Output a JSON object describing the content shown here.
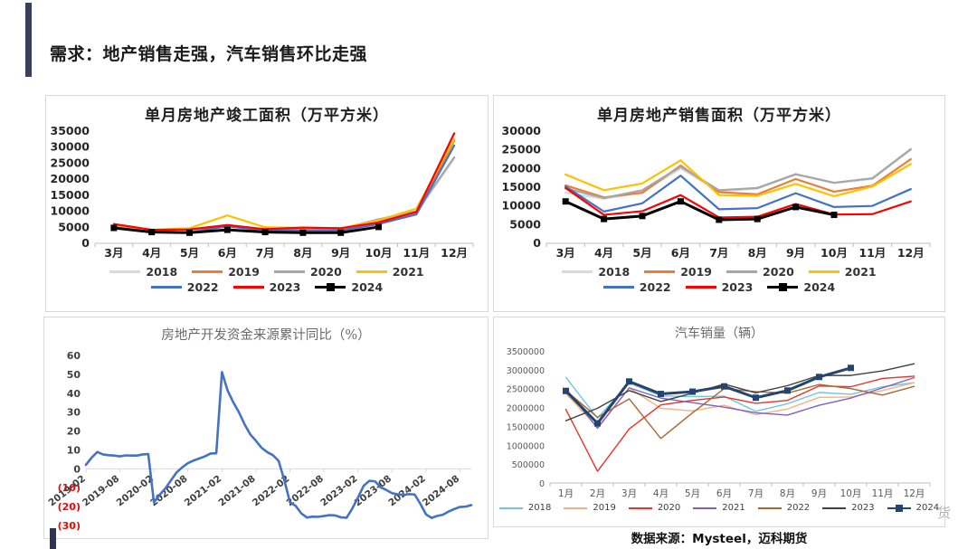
{
  "page": {
    "title": "需求：地产销售走强，汽车销售环比走强",
    "footer": "数据来源：Mysteel，迈科期货",
    "watermark": "货"
  },
  "chart_data": [
    {
      "type": "line",
      "title": "单月房地产竣工面积（万平方米）",
      "categories": [
        "3月",
        "4月",
        "5月",
        "6月",
        "7月",
        "8月",
        "9月",
        "10月",
        "11月",
        "12月"
      ],
      "ylim": [
        0,
        35000
      ],
      "ytick_step": 5000,
      "grid": false,
      "legend_position": "bottom",
      "series": [
        {
          "name": "2018",
          "color": "#D9D9D9",
          "values": [
            5000,
            4000,
            4100,
            5200,
            4100,
            4200,
            4300,
            6500,
            9300,
            26500
          ]
        },
        {
          "name": "2019",
          "color": "#ED7D31",
          "values": [
            5700,
            4100,
            4300,
            5500,
            4400,
            4700,
            4600,
            6800,
            9700,
            32000
          ]
        },
        {
          "name": "2020",
          "color": "#A6A6A6",
          "values": [
            5400,
            4000,
            4400,
            5700,
            4400,
            4500,
            4500,
            7500,
            10000,
            26800
          ]
        },
        {
          "name": "2021",
          "color": "#FFC000",
          "values": [
            5200,
            4200,
            4700,
            8700,
            5000,
            4800,
            4700,
            7200,
            10800,
            32500
          ]
        },
        {
          "name": "2022",
          "color": "#4472C4",
          "values": [
            5000,
            3500,
            3400,
            5300,
            4000,
            4000,
            4000,
            6000,
            9000,
            30500
          ]
        },
        {
          "name": "2023",
          "color": "#FF0000",
          "values": [
            6000,
            4200,
            4300,
            5700,
            4400,
            4900,
            4700,
            6500,
            9800,
            34300
          ]
        },
        {
          "name": "2024",
          "color": "#000000",
          "marker": true,
          "values": [
            4800,
            3500,
            3300,
            4200,
            3500,
            3300,
            3300,
            5100,
            null,
            null
          ]
        }
      ]
    },
    {
      "type": "line",
      "title": "单月房地产销售面积（万平方米）",
      "categories": [
        "3月",
        "4月",
        "5月",
        "6月",
        "7月",
        "8月",
        "9月",
        "10月",
        "11月",
        "12月"
      ],
      "ylim": [
        0,
        30000
      ],
      "ytick_step": 5000,
      "grid": false,
      "legend_position": "bottom",
      "series": [
        {
          "name": "2018",
          "color": "#D9D9D9",
          "values": [
            13500,
            11900,
            13700,
            20000,
            14000,
            14600,
            18400,
            16100,
            17200,
            25000
          ]
        },
        {
          "name": "2019",
          "color": "#ED7D31",
          "values": [
            15500,
            12300,
            13500,
            20800,
            13700,
            13100,
            17200,
            13800,
            15400,
            22500
          ]
        },
        {
          "name": "2020",
          "color": "#A6A6A6",
          "values": [
            14700,
            12100,
            14200,
            20500,
            14200,
            14800,
            18500,
            16200,
            17400,
            25200
          ]
        },
        {
          "name": "2021",
          "color": "#FFC000",
          "values": [
            18400,
            14200,
            16000,
            22200,
            12900,
            12700,
            15900,
            12600,
            15200,
            21200
          ]
        },
        {
          "name": "2022",
          "color": "#4472C4",
          "values": [
            15200,
            8500,
            10700,
            18100,
            9100,
            9400,
            13400,
            9700,
            10000,
            14500
          ]
        },
        {
          "name": "2023",
          "color": "#FF0000",
          "values": [
            14800,
            7600,
            8600,
            12900,
            6900,
            7100,
            10500,
            7700,
            7800,
            11200
          ]
        },
        {
          "name": "2024",
          "color": "#000000",
          "marker": true,
          "values": [
            11200,
            6500,
            7300,
            11200,
            6300,
            6500,
            9700,
            7600,
            null,
            null
          ]
        }
      ]
    },
    {
      "type": "line",
      "title": "房地产开发资金来源累计同比（%）",
      "ylim": [
        -30,
        60
      ],
      "ytick_step": 10,
      "grid": false,
      "line_color": "#4472C4",
      "negative_tick_color": "#FF0000",
      "tick_labels": [
        "2019-02",
        "2019-08",
        "2020-02",
        "2020-08",
        "2021-02",
        "2021-08",
        "2022-02",
        "2022-08",
        "2023-02",
        "2023-08",
        "2024-02",
        "2024-08"
      ],
      "tick_every": 6,
      "values": [
        2.1,
        5.9,
        8.9,
        7.6,
        7.2,
        7.0,
        6.6,
        7.1,
        7.0,
        7.0,
        7.6,
        7.8,
        -17.8,
        -13.8,
        -10.4,
        -6.1,
        -1.9,
        0.8,
        3.0,
        4.4,
        5.5,
        6.6,
        8.1,
        8.2,
        51.2,
        41.4,
        35.2,
        29.9,
        23.5,
        18.2,
        14.8,
        11.1,
        8.8,
        7.2,
        4.2,
        -6.0,
        -17.7,
        -19.6,
        -23.6,
        -25.8,
        -25.3,
        -25.4,
        -25.0,
        -24.5,
        -24.7,
        -25.7,
        -25.9,
        -21.0,
        -15.2,
        -9.0,
        -6.4,
        -6.6,
        -9.8,
        -11.2,
        -12.9,
        -13.5,
        -13.8,
        -13.4,
        -13.6,
        -18.5,
        -24.1,
        -26.0,
        -24.9,
        -24.3,
        -22.6,
        -21.3,
        -20.2,
        -20.0,
        -19.2
      ]
    },
    {
      "type": "line",
      "title": "汽车销量（辆）",
      "categories": [
        "1月",
        "2月",
        "3月",
        "4月",
        "5月",
        "6月",
        "7月",
        "8月",
        "9月",
        "10月",
        "11月",
        "12月"
      ],
      "ylim": [
        0,
        3500000
      ],
      "ytick_step": 500000,
      "grid": false,
      "legend_position": "bottom",
      "series": [
        {
          "name": "2018",
          "color": "#6FC7DD",
          "values": [
            2800000,
            1720000,
            2650000,
            2310000,
            2290000,
            2300000,
            1900000,
            2100000,
            2400000,
            2350000,
            2550000,
            2660000
          ]
        },
        {
          "name": "2019",
          "color": "#F4B183",
          "values": [
            2370000,
            1480000,
            2520000,
            1980000,
            1910000,
            2060000,
            1810000,
            1960000,
            2270000,
            2280000,
            2450000,
            2660000
          ]
        },
        {
          "name": "2020",
          "color": "#EE3124",
          "values": [
            1950000,
            310000,
            1430000,
            2070000,
            2190000,
            2280000,
            2110000,
            2190000,
            2570000,
            2550000,
            2770000,
            2830000
          ]
        },
        {
          "name": "2021",
          "color": "#7D5FC5",
          "values": [
            2500000,
            1450000,
            2520000,
            2250000,
            2130000,
            2010000,
            1860000,
            1800000,
            2060000,
            2250000,
            2520000,
            2790000
          ]
        },
        {
          "name": "2022",
          "color": "#A9682F",
          "values": [
            2450000,
            1740000,
            2230000,
            1180000,
            1860000,
            2500000,
            2420000,
            2380000,
            2610000,
            2500000,
            2330000,
            2560000
          ]
        },
        {
          "name": "2023",
          "color": "#404040",
          "values": [
            1650000,
            1980000,
            2450000,
            2160000,
            2380000,
            2620000,
            2390000,
            2580000,
            2850000,
            2850000,
            2970000,
            3160000
          ]
        },
        {
          "name": "2024",
          "color": "#24456E",
          "marker": true,
          "values": [
            2440000,
            1580000,
            2690000,
            2360000,
            2420000,
            2560000,
            2260000,
            2450000,
            2810000,
            3050000,
            null,
            null
          ]
        }
      ]
    }
  ]
}
